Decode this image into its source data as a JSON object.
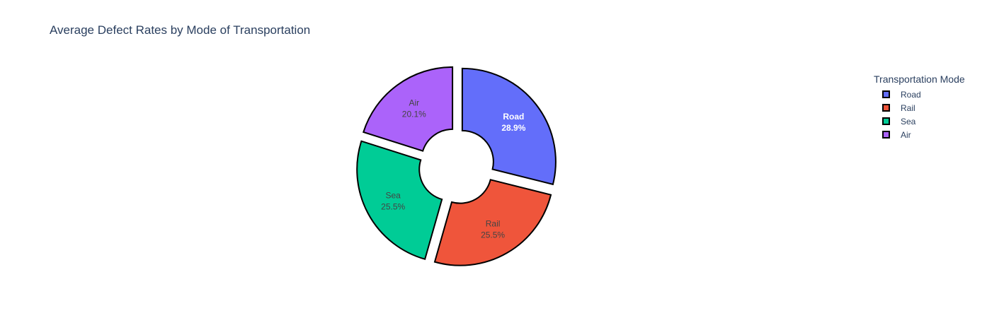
{
  "chart_data": {
    "type": "pie",
    "title": "Average Defect Rates by Mode of Transportation",
    "legend_title": "Transportation Mode",
    "legend_position": "top-right",
    "hole": true,
    "categories": [
      "Road",
      "Rail",
      "Sea",
      "Air"
    ],
    "values": [
      28.9,
      25.5,
      25.5,
      20.1
    ],
    "labels": [
      {
        "name": "Road",
        "percent": "28.9%"
      },
      {
        "name": "Rail",
        "percent": "25.5%"
      },
      {
        "name": "Sea",
        "percent": "25.5%"
      },
      {
        "name": "Air",
        "percent": "20.1%"
      }
    ],
    "colors": [
      "#636efa",
      "#ef553b",
      "#00cc96",
      "#ab63fa"
    ],
    "label_colors": [
      "#ffffff",
      "#444444",
      "#444444",
      "#444444"
    ],
    "label_bold": [
      true,
      false,
      false,
      false
    ]
  }
}
